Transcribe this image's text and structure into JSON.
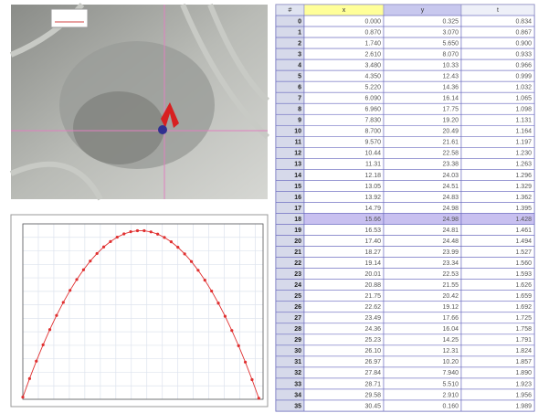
{
  "table": {
    "header": [
      "#",
      "x",
      "y",
      "t"
    ],
    "selected_row": 18,
    "rows": [
      [
        "0",
        "0.000",
        "0.325",
        "0.834"
      ],
      [
        "1",
        "0.870",
        "3.070",
        "0.867"
      ],
      [
        "2",
        "1.740",
        "5.650",
        "0.900"
      ],
      [
        "3",
        "2.610",
        "8.070",
        "0.933"
      ],
      [
        "4",
        "3.480",
        "10.33",
        "0.966"
      ],
      [
        "5",
        "4.350",
        "12.43",
        "0.999"
      ],
      [
        "6",
        "5.220",
        "14.36",
        "1.032"
      ],
      [
        "7",
        "6.090",
        "16.14",
        "1.065"
      ],
      [
        "8",
        "6.960",
        "17.75",
        "1.098"
      ],
      [
        "9",
        "7.830",
        "19.20",
        "1.131"
      ],
      [
        "10",
        "8.700",
        "20.49",
        "1.164"
      ],
      [
        "11",
        "9.570",
        "21.61",
        "1.197"
      ],
      [
        "12",
        "10.44",
        "22.58",
        "1.230"
      ],
      [
        "13",
        "11.31",
        "23.38",
        "1.263"
      ],
      [
        "14",
        "12.18",
        "24.03",
        "1.296"
      ],
      [
        "15",
        "13.05",
        "24.51",
        "1.329"
      ],
      [
        "16",
        "13.92",
        "24.83",
        "1.362"
      ],
      [
        "17",
        "14.79",
        "24.98",
        "1.395"
      ],
      [
        "18",
        "15.66",
        "24.98",
        "1.428"
      ],
      [
        "19",
        "16.53",
        "24.81",
        "1.461"
      ],
      [
        "20",
        "17.40",
        "24.48",
        "1.494"
      ],
      [
        "21",
        "18.27",
        "23.99",
        "1.527"
      ],
      [
        "22",
        "19.14",
        "23.34",
        "1.560"
      ],
      [
        "23",
        "20.01",
        "22.53",
        "1.593"
      ],
      [
        "24",
        "20.88",
        "21.55",
        "1.626"
      ],
      [
        "25",
        "21.75",
        "20.42",
        "1.659"
      ],
      [
        "26",
        "22.62",
        "19.12",
        "1.692"
      ],
      [
        "27",
        "23.49",
        "17.66",
        "1.725"
      ],
      [
        "28",
        "24.36",
        "16.04",
        "1.758"
      ],
      [
        "29",
        "25.23",
        "14.25",
        "1.791"
      ],
      [
        "30",
        "26.10",
        "12.31",
        "1.824"
      ],
      [
        "31",
        "26.97",
        "10.20",
        "1.857"
      ],
      [
        "32",
        "27.84",
        "7.940",
        "1.890"
      ],
      [
        "33",
        "28.71",
        "5.510",
        "1.923"
      ],
      [
        "34",
        "29.58",
        "2.910",
        "1.956"
      ],
      [
        "35",
        "30.45",
        "0.160",
        "1.989"
      ]
    ]
  },
  "chart": {
    "type": "scatter",
    "color": "#e03030",
    "grid": true,
    "xlim": [
      0,
      31
    ],
    "ylim": [
      0,
      26
    ],
    "xticks": [
      0,
      2,
      4,
      6,
      8,
      10,
      12,
      14,
      16,
      18,
      20,
      22,
      24,
      26,
      28,
      30
    ],
    "yticks": [
      0,
      2,
      4,
      6,
      8,
      10,
      12,
      14,
      16,
      18,
      20,
      22,
      24,
      26
    ]
  }
}
